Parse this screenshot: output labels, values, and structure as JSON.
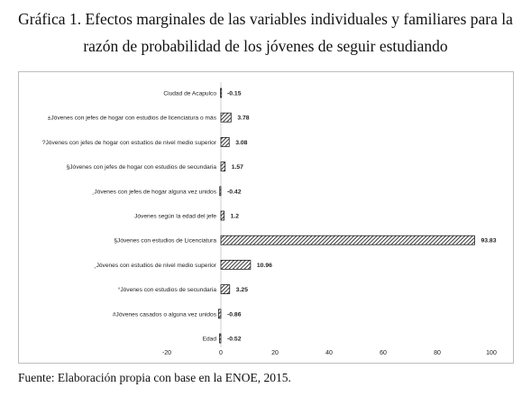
{
  "figure": {
    "title_line1": "Gráfica 1. Efectos marginales de las variables individuales y familiares para la",
    "title_line2": "razón de probabilidad de los jóvenes de seguir estudiando",
    "source": "Fuente: Elaboración propia con base en la ENOE, 2015."
  },
  "chart_data": {
    "type": "bar",
    "orientation": "horizontal",
    "categories": [
      "Ciudad de Acapulco",
      "±Jóvenes con jefes de hogar con estudios de licenciatura o más",
      "?Jóvenes con jefes de hogar con estudios de nivel medio superior",
      "§Jóvenes con jefes de hogar con estudios de secundaria",
      "¸Jóvenes con jefes de hogar alguna vez unidos",
      "Jóvenes según la edad del jefe",
      "§Jóvenes con estudios de Licenciatura",
      "¸Jóvenes con estudios de nivel medio superior",
      "°Jóvenes con estudios de secundaria",
      "#Jóvenes casados o alguna vez unidos",
      "Edad"
    ],
    "values": [
      -0.15,
      3.78,
      3.08,
      1.57,
      -0.42,
      1.2,
      93.83,
      10.96,
      3.25,
      -0.86,
      -0.52
    ],
    "data_labels": [
      "-0.15",
      "3.78",
      "3.08",
      "1.57",
      "-0.42",
      "1.2",
      "93.83",
      "10.96",
      "3.25",
      "-0.86",
      "-0.52"
    ],
    "xlim": [
      -20,
      100
    ],
    "xticks": [
      -20,
      0,
      20,
      40,
      60,
      80,
      100
    ],
    "fill": "diagonal-hatch",
    "bar_color": "#222222",
    "grid": false,
    "legend": "none",
    "title": "",
    "xlabel": "",
    "ylabel": ""
  }
}
